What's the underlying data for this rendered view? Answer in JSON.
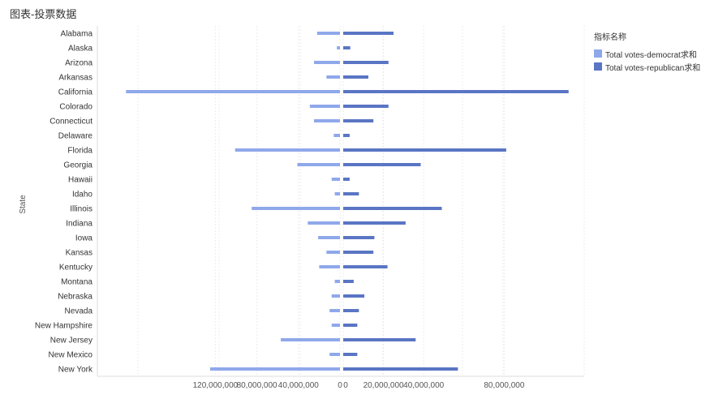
{
  "title": "图表-投票数据",
  "legend": {
    "title": "指标名称",
    "items": [
      {
        "label": "Total votes-democrat求和",
        "color": "#8fa8ea"
      },
      {
        "label": "Total votes-republican求和",
        "color": "#5a75c4"
      }
    ]
  },
  "chart_data": {
    "type": "bar",
    "orientation": "horizontal-butterfly",
    "ylabel": "State",
    "categories": [
      "Alabama",
      "Alaska",
      "Arizona",
      "Arkansas",
      "California",
      "Colorado",
      "Connecticut",
      "Delaware",
      "Florida",
      "Georgia",
      "Hawaii",
      "Idaho",
      "Illinois",
      "Indiana",
      "Iowa",
      "Kansas",
      "Kentucky",
      "Montana",
      "Nebraska",
      "Nevada",
      "New Hampshire",
      "New Jersey",
      "New Mexico",
      "New York"
    ],
    "left_ticks": [
      {
        "label": "120,000,000",
        "value": 120000000
      },
      {
        "label": "80,000,000",
        "value": 80000000
      },
      {
        "label": "40,000,000",
        "value": 40000000
      },
      {
        "label": "0",
        "value": 0
      }
    ],
    "right_ticks": [
      {
        "label": "0",
        "value": 0
      },
      {
        "label": "20,000,000",
        "value": 20000000
      },
      {
        "label": "40,000,000",
        "value": 40000000
      },
      {
        "label": "80,000,000",
        "value": 80000000
      }
    ],
    "series": [
      {
        "name": "Total votes-democrat求和",
        "color": "#8fa8ea",
        "side": "left",
        "values": [
          22000000,
          3000000,
          25000000,
          13000000,
          206000000,
          29000000,
          25000000,
          6000000,
          101000000,
          41000000,
          8000000,
          5000000,
          85000000,
          31000000,
          21000000,
          13000000,
          20000000,
          5000000,
          8000000,
          10000000,
          8000000,
          57000000,
          10000000,
          125000000
        ]
      },
      {
        "name": "Total votes-republican求和",
        "color": "#5a75c4",
        "side": "right",
        "values": [
          25000000,
          3500000,
          22500000,
          12500000,
          112000000,
          22500000,
          15000000,
          3200000,
          81000000,
          38500000,
          3200000,
          7800000,
          49000000,
          31000000,
          15500000,
          15000000,
          22000000,
          5200000,
          10500000,
          7800000,
          7000000,
          36000000,
          7000000,
          57000000
        ]
      }
    ]
  }
}
